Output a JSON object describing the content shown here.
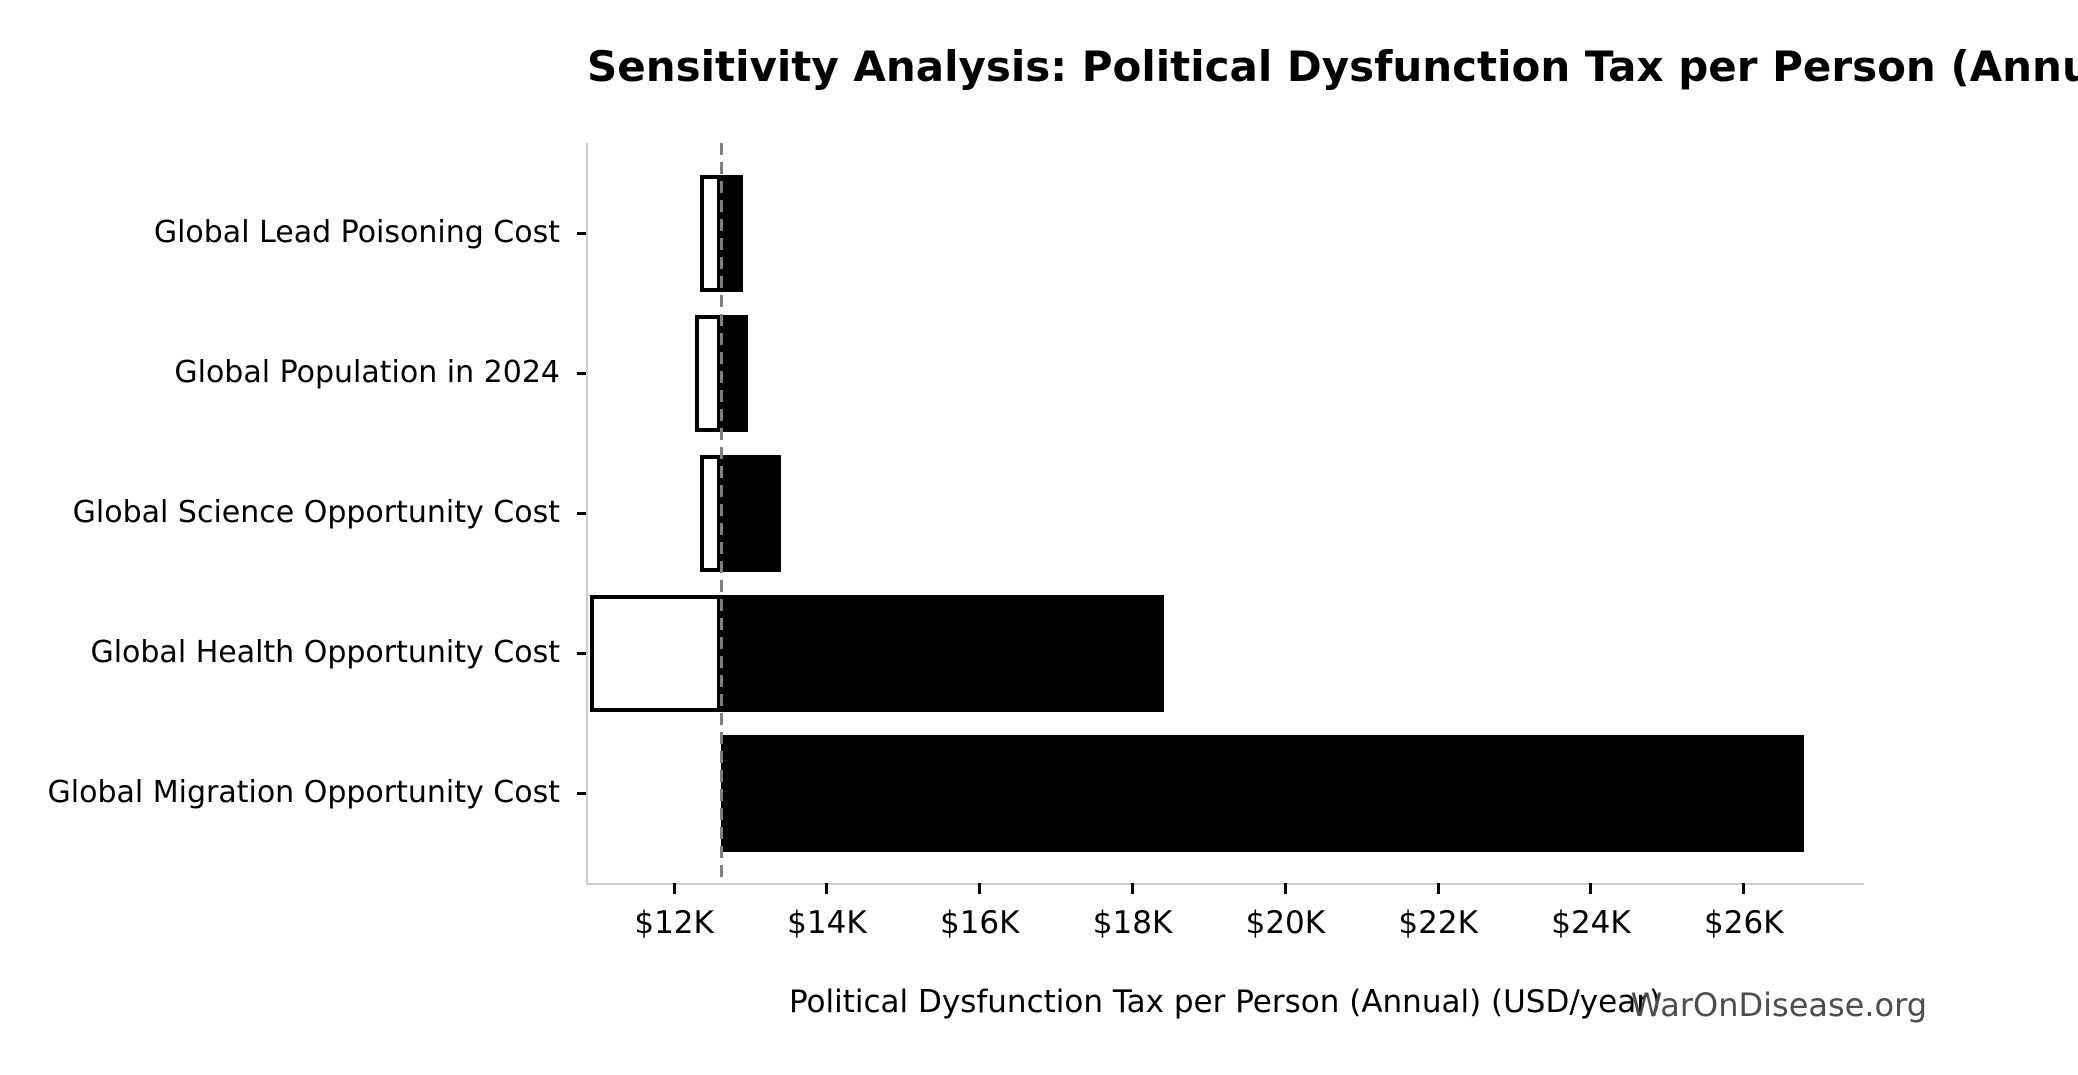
{
  "watermark": "WarOnDisease.org",
  "chart_data": {
    "type": "bar",
    "subtype": "tornado-sensitivity",
    "orientation": "horizontal",
    "title": "Sensitivity Analysis: Political Dysfunction Tax per Person (Annual)",
    "xlabel": "Political Dysfunction Tax per Person (Annual) (USD/year)",
    "categories": [
      "Global Lead Poisoning Cost",
      "Global Population in 2024",
      "Global Science Opportunity Cost",
      "Global Health Opportunity Cost",
      "Global Migration Opportunity Cost"
    ],
    "baseline_usd_per_year": 12615,
    "series": [
      {
        "name": "low_value",
        "values": [
          12340,
          12275,
          12340,
          10900,
          12615
        ]
      },
      {
        "name": "high_value",
        "values": [
          12900,
          12970,
          13400,
          18410,
          26790
        ]
      }
    ],
    "xlim": [
      10860,
      27560
    ],
    "xticks": [
      {
        "value": 12000,
        "label": "$12K"
      },
      {
        "value": 14000,
        "label": "$14K"
      },
      {
        "value": 16000,
        "label": "$16K"
      },
      {
        "value": 18000,
        "label": "$18K"
      },
      {
        "value": 20000,
        "label": "$20K"
      },
      {
        "value": 22000,
        "label": "$22K"
      },
      {
        "value": 24000,
        "label": "$24K"
      },
      {
        "value": 26000,
        "label": "$26K"
      }
    ],
    "grid": false,
    "legend": "none",
    "colors": {
      "bar_high_fill": "#000000",
      "bar_low_fill": "#ffffff",
      "bar_edge": "#000000",
      "baseline_line": "#7f7f7f",
      "spine": "#cccccc",
      "tick": "#000000",
      "watermark": "#4d4d4d"
    }
  }
}
